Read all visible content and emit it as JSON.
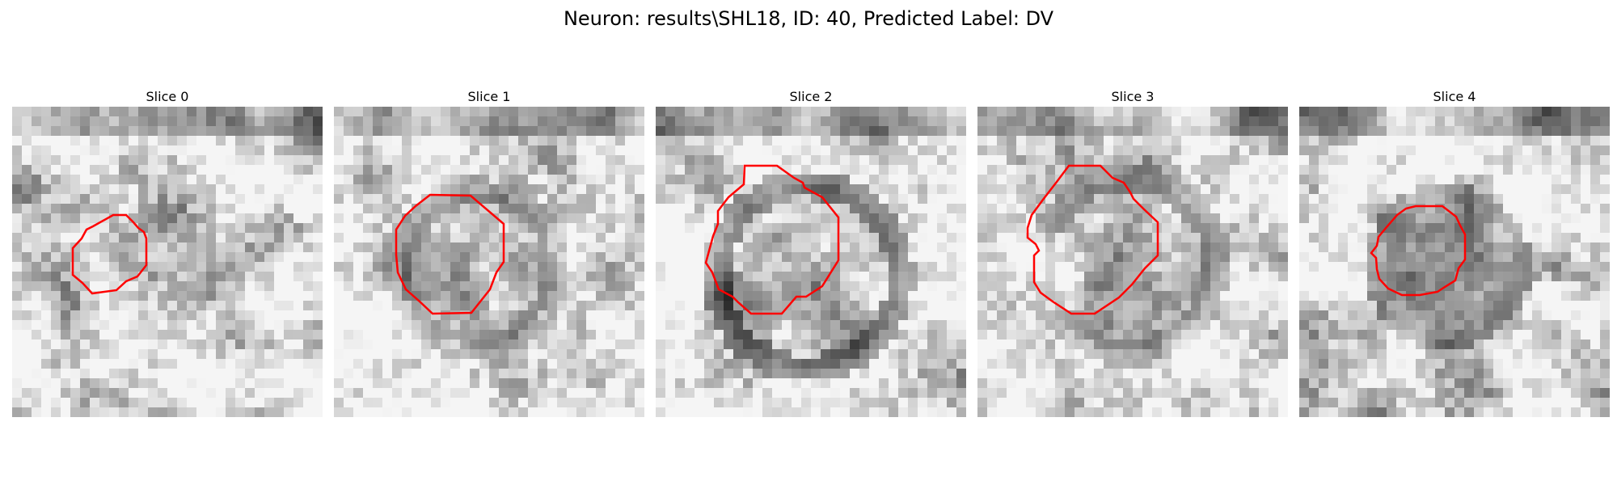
{
  "figure": {
    "title": "Neuron: results\\SHL18, ID: 40, Predicted Label: DV"
  },
  "panels": [
    {
      "title": "Slice 0"
    },
    {
      "title": "Slice 1"
    },
    {
      "title": "Slice 2"
    },
    {
      "title": "Slice 3"
    },
    {
      "title": "Slice 4"
    }
  ],
  "colors": {
    "contour": "#ff0000"
  }
}
